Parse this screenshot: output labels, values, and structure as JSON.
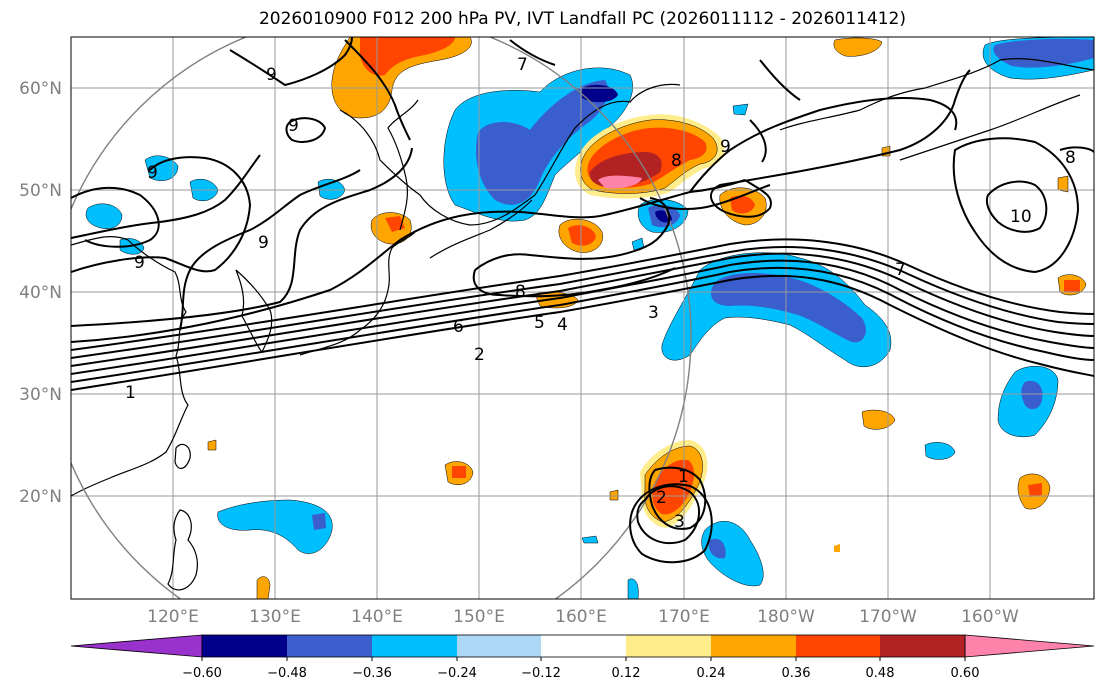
{
  "title": "2026010900 F012 200 hPa PV, IVT Landfall PC (2026011112 - 2026011412)",
  "map": {
    "lat_labels": [
      "60°N",
      "50°N",
      "40°N",
      "30°N",
      "20°N"
    ],
    "lon_labels": [
      "120°E",
      "130°E",
      "140°E",
      "150°E",
      "160°E",
      "170°E",
      "180°W",
      "170°W",
      "160°W"
    ],
    "contour_labels": [
      "1",
      "2",
      "3",
      "4",
      "5",
      "6",
      "7",
      "8",
      "8",
      "8",
      "9",
      "9",
      "9",
      "9",
      "9",
      "9",
      "10",
      "7",
      "1",
      "2",
      "3"
    ]
  },
  "colorbar": {
    "ticks": [
      "−0.60",
      "−0.48",
      "−0.36",
      "−0.24",
      "−0.12",
      "0.12",
      "0.24",
      "0.36",
      "0.48",
      "0.60"
    ],
    "colors": [
      "#9932cc",
      "#00008b",
      "#3a5fcd",
      "#00bfff",
      "#add8f5",
      "#ffffff",
      "#ffec8b",
      "#ffa500",
      "#ff4500",
      "#b22222",
      "#ff82ab"
    ]
  }
}
